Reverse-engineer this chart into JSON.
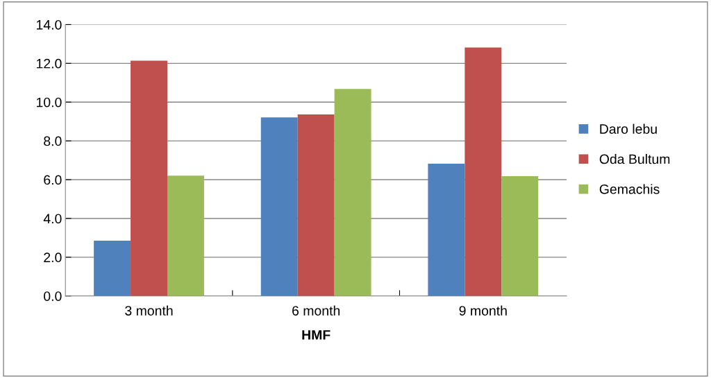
{
  "chart_data": {
    "type": "bar",
    "xlabel": "HMF",
    "categories": [
      "3 month",
      "6 month",
      "9 month"
    ],
    "series": [
      {
        "name": "Daro lebu",
        "color": "#4f81bd",
        "values": [
          2.85,
          9.21,
          6.82
        ]
      },
      {
        "name": "Oda Bultum",
        "color": "#c0504d",
        "values": [
          12.14,
          9.36,
          12.82
        ]
      },
      {
        "name": "Gemachis",
        "color": "#9bbb59",
        "values": [
          6.21,
          10.68,
          6.18
        ]
      }
    ],
    "ylim": [
      0,
      14
    ],
    "yticks": [
      {
        "value": 0,
        "label": "0.0"
      },
      {
        "value": 2,
        "label": "2.0"
      },
      {
        "value": 4,
        "label": "4.0"
      },
      {
        "value": 6,
        "label": "6.0"
      },
      {
        "value": 8,
        "label": "8.0"
      },
      {
        "value": 10,
        "label": "10.0"
      },
      {
        "value": 12,
        "label": "12.0"
      },
      {
        "value": 14,
        "label": "14.0"
      }
    ],
    "grid": "y",
    "legend": "right"
  }
}
